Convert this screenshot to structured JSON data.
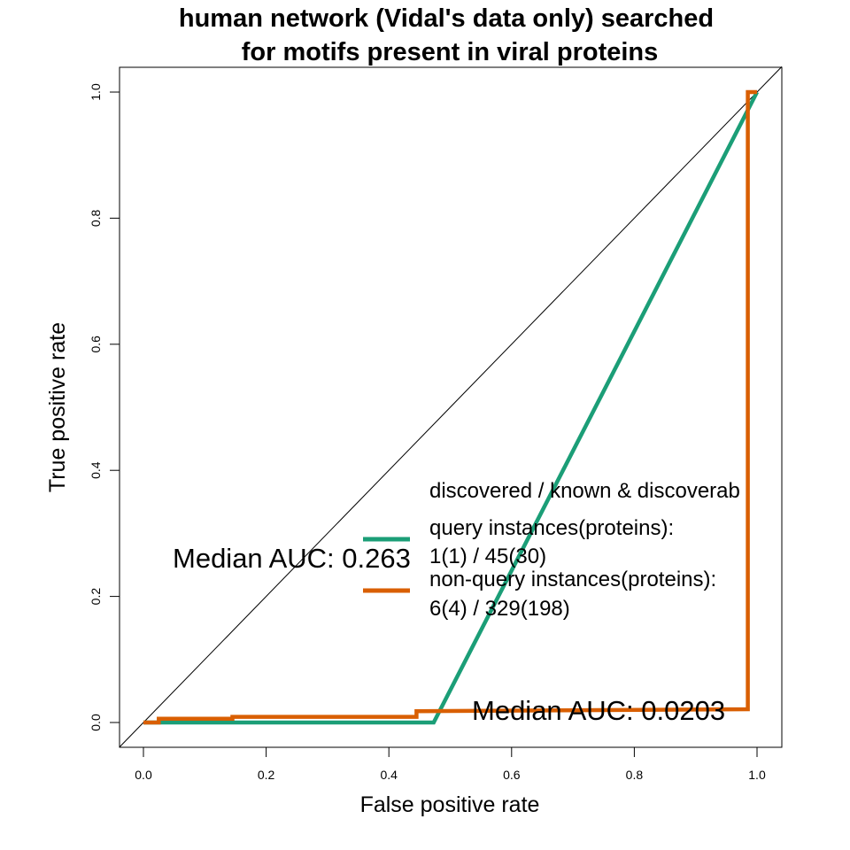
{
  "chart_data": {
    "type": "line",
    "title_lines": [
      "human network (Vidal's data only) searched",
      "for motifs present in viral proteins"
    ],
    "xlabel": "False positive rate",
    "ylabel": "True positive rate",
    "xlim": [
      0,
      1
    ],
    "ylim": [
      0,
      1
    ],
    "x_ticks": [
      0.0,
      0.2,
      0.4,
      0.6,
      0.8,
      1.0
    ],
    "x_tick_labels": [
      "0.0",
      "0.2",
      "0.4",
      "0.6",
      "0.8",
      "1.0"
    ],
    "y_ticks": [
      0.0,
      0.2,
      0.4,
      0.6,
      0.8,
      1.0
    ],
    "y_tick_labels": [
      "0.0",
      "0.2",
      "0.4",
      "0.6",
      "0.8",
      "1.0"
    ],
    "grid": false,
    "diagonal_reference": {
      "x": [
        0,
        1
      ],
      "y": [
        0,
        1
      ],
      "color": "#000000"
    },
    "series": [
      {
        "color": "#1b9e77",
        "x": [
          0,
          0.473,
          1.0
        ],
        "y": [
          0,
          0,
          1.0
        ]
      },
      {
        "color": "#d95f02",
        "x": [
          0,
          0.025,
          0.025,
          0.145,
          0.145,
          0.445,
          0.445,
          0.985,
          0.985,
          1.0
        ],
        "y": [
          0,
          0,
          0.006,
          0.006,
          0.009,
          0.009,
          0.018,
          0.021,
          1.0,
          1.0
        ]
      }
    ],
    "legend": {
      "header": "discovered / known & discoverab",
      "entries": [
        {
          "color": "#1b9e77",
          "line1": "query instances(proteins):",
          "line2": "1(1) / 45(30)"
        },
        {
          "color": "#d95f02",
          "line1": "non-query instances(proteins):",
          "line2": "6(4) / 329(198)"
        }
      ]
    },
    "annotations": [
      {
        "text": "Median AUC: 0.263",
        "color": "#000000"
      },
      {
        "text": "Median AUC: 0.0203",
        "color": "#000000"
      }
    ]
  }
}
